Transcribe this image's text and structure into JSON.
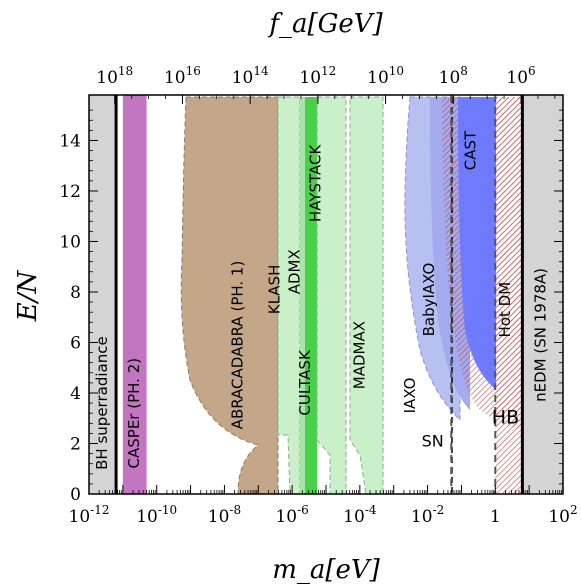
{
  "chart_data": {
    "type": "area",
    "xlabel": "m_a[eV]",
    "ylabel": "E/N",
    "top_label": "f_a[GeV]",
    "x_scale": "log",
    "xlim": [
      -12,
      2
    ],
    "ylim": [
      0,
      15.8
    ],
    "x_ticks": [
      {
        "exp": -12,
        "text": "10",
        "sup": "-12"
      },
      {
        "exp": -10,
        "text": "10",
        "sup": "-10"
      },
      {
        "exp": -8,
        "text": "10",
        "sup": "-8"
      },
      {
        "exp": -6,
        "text": "10",
        "sup": "-6"
      },
      {
        "exp": -4,
        "text": "10",
        "sup": "-4"
      },
      {
        "exp": -2,
        "text": "10",
        "sup": "-2"
      },
      {
        "exp": 0,
        "text": "1",
        "sup": ""
      },
      {
        "exp": 2,
        "text": "10",
        "sup": "2"
      }
    ],
    "y_ticks": [
      0,
      2,
      4,
      6,
      8,
      10,
      12,
      14
    ],
    "top_ticks": [
      {
        "text": "10",
        "sup": "18",
        "exp_m": -11.24
      },
      {
        "text": "10",
        "sup": "16",
        "exp_m": -9.24
      },
      {
        "text": "10",
        "sup": "14",
        "exp_m": -7.24
      },
      {
        "text": "10",
        "sup": "12",
        "exp_m": -5.24
      },
      {
        "text": "10",
        "sup": "10",
        "exp_m": -3.24
      },
      {
        "text": "10",
        "sup": "8",
        "exp_m": -1.24
      },
      {
        "text": "10",
        "sup": "6",
        "exp_m": 0.76
      }
    ],
    "bands": [
      {
        "name": "BH superradiance",
        "x_from": -12,
        "x_to": -11.2,
        "color": "#d4d4d4"
      },
      {
        "name": "CASPEr (PH. 2)",
        "x_from": -11.0,
        "x_to": -10.3,
        "color": "#c275c0"
      },
      {
        "name": "nEDM (SN 1978A)",
        "x_from": 0.8,
        "x_to": 2,
        "color": "#d4d4d4"
      }
    ],
    "vertical_lines": [
      {
        "x": -11.2,
        "style": "solid"
      },
      {
        "x": 0.8,
        "style": "solid"
      },
      {
        "x": -1.3,
        "style": "dashed",
        "name": "SN"
      },
      {
        "x": 0.0,
        "style": "dashed"
      }
    ],
    "labels": [
      {
        "text": "BH superradiance",
        "x": -11.6,
        "y": 3.6,
        "rotate": true
      },
      {
        "text": "CASPEr (PH. 2)",
        "x": -10.65,
        "y": 3.2,
        "rotate": true
      },
      {
        "text": "ABRACADABRA (PH. 1)",
        "x": -7.6,
        "y": 5.9,
        "rotate": true
      },
      {
        "text": "KLASH",
        "x": -6.5,
        "y": 8.1,
        "rotate": true
      },
      {
        "text": "ADMX",
        "x": -5.92,
        "y": 8.8,
        "rotate": true
      },
      {
        "text": "HAYSTACK",
        "x": -5.3,
        "y": 12.3,
        "rotate": true
      },
      {
        "text": "CULTASK",
        "x": -5.6,
        "y": 4.4,
        "rotate": true
      },
      {
        "text": "MADMAX",
        "x": -4.0,
        "y": 5.5,
        "rotate": true
      },
      {
        "text": "IAXO",
        "x": -2.5,
        "y": 3.9,
        "rotate": true
      },
      {
        "text": "BabyIAXO",
        "x": -1.95,
        "y": 7.7,
        "rotate": true
      },
      {
        "text": "CAST",
        "x": -0.72,
        "y": 13.6,
        "rotate": true
      },
      {
        "text": "Hot DM",
        "x": 0.3,
        "y": 7.3,
        "rotate": true
      },
      {
        "text": "nEDM (SN 1978A)",
        "x": 1.35,
        "y": 6.3,
        "rotate": true
      },
      {
        "text": "SN",
        "x": -1.85,
        "y": 2.05,
        "rotate": false
      },
      {
        "text": "HB",
        "x": 0.3,
        "y": 3.0,
        "rotate": false
      }
    ]
  }
}
